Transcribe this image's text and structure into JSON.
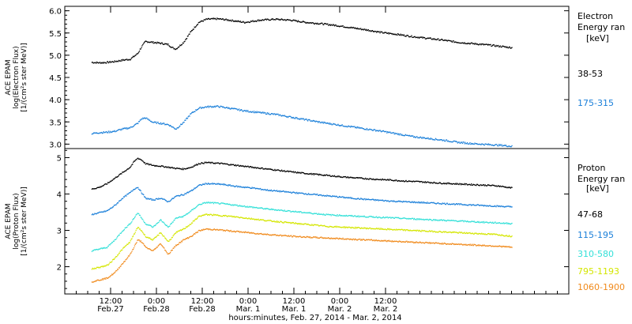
{
  "chart_data": [
    {
      "type": "scatter",
      "ylabel": [
        "ACE EPAM",
        "log(Electron Flux)",
        "[1/(cm²s ster MeV)]"
      ],
      "legend": {
        "title": [
          "Electron",
          "Energy ran",
          "[keV]"
        ]
      },
      "ylim": [
        2.9,
        6.1
      ],
      "yticks": [
        "6.0",
        "5.5",
        "5.0",
        "4.5",
        "4.0",
        "3.5",
        "3.0"
      ],
      "series": [
        {
          "name": "38-53",
          "color": "#000000",
          "x": [
            0,
            2,
            4,
            6,
            8,
            10,
            12,
            13,
            14,
            16,
            18,
            20,
            21,
            22,
            24,
            26,
            28,
            30,
            33,
            36,
            40,
            44,
            48,
            52,
            56,
            60,
            64,
            68,
            72,
            76,
            80,
            84,
            88,
            92,
            96,
            100,
            104,
            108,
            110
          ],
          "values": [
            4.85,
            4.84,
            4.85,
            4.87,
            4.9,
            4.92,
            5.05,
            5.2,
            5.32,
            5.3,
            5.28,
            5.25,
            5.18,
            5.15,
            5.3,
            5.55,
            5.75,
            5.82,
            5.83,
            5.8,
            5.75,
            5.8,
            5.82,
            5.8,
            5.75,
            5.72,
            5.68,
            5.63,
            5.58,
            5.52,
            5.48,
            5.43,
            5.39,
            5.35,
            5.3,
            5.27,
            5.24,
            5.2,
            5.18
          ]
        },
        {
          "name": "175-315",
          "color": "#1a7fd9",
          "x": [
            0,
            2,
            4,
            6,
            8,
            10,
            12,
            13,
            14,
            16,
            18,
            20,
            21,
            22,
            24,
            26,
            28,
            30,
            33,
            36,
            40,
            44,
            48,
            52,
            56,
            60,
            64,
            68,
            72,
            76,
            80,
            84,
            88,
            92,
            96,
            100,
            104,
            108,
            110
          ],
          "values": [
            3.25,
            3.27,
            3.28,
            3.3,
            3.35,
            3.38,
            3.48,
            3.58,
            3.6,
            3.5,
            3.48,
            3.45,
            3.4,
            3.35,
            3.5,
            3.7,
            3.82,
            3.85,
            3.86,
            3.82,
            3.76,
            3.72,
            3.68,
            3.62,
            3.56,
            3.5,
            3.45,
            3.4,
            3.35,
            3.3,
            3.24,
            3.18,
            3.14,
            3.1,
            3.05,
            3.02,
            3.0,
            2.98,
            2.96
          ]
        }
      ]
    },
    {
      "type": "scatter",
      "ylabel": [
        "ACE EPAM",
        "log(Proton Flux)",
        "[1/(cm²s ster MeV)]"
      ],
      "legend": {
        "title": [
          "Proton",
          "Energy ran",
          "[keV]"
        ]
      },
      "ylim": [
        1.25,
        5.25
      ],
      "yticks": [
        "5",
        "4",
        "3",
        "2"
      ],
      "series": [
        {
          "name": "47-68",
          "color": "#000000",
          "x": [
            0,
            2,
            4,
            6,
            8,
            10,
            11,
            12,
            13,
            14,
            16,
            18,
            20,
            22,
            24,
            26,
            28,
            30,
            34,
            38,
            42,
            46,
            50,
            54,
            58,
            62,
            66,
            70,
            74,
            78,
            82,
            86,
            90,
            94,
            98,
            102,
            106,
            110
          ],
          "values": [
            4.15,
            4.2,
            4.3,
            4.45,
            4.6,
            4.75,
            4.9,
            5.0,
            4.95,
            4.85,
            4.8,
            4.78,
            4.75,
            4.72,
            4.7,
            4.75,
            4.85,
            4.88,
            4.85,
            4.8,
            4.75,
            4.7,
            4.65,
            4.6,
            4.56,
            4.52,
            4.48,
            4.45,
            4.42,
            4.4,
            4.37,
            4.35,
            4.32,
            4.3,
            4.28,
            4.26,
            4.24,
            4.18
          ]
        },
        {
          "name": "115-195",
          "color": "#1a7fd9",
          "x": [
            0,
            2,
            4,
            6,
            8,
            10,
            11,
            12,
            13,
            14,
            16,
            18,
            20,
            22,
            24,
            26,
            28,
            30,
            34,
            38,
            42,
            46,
            50,
            54,
            58,
            62,
            66,
            70,
            74,
            78,
            82,
            86,
            90,
            94,
            98,
            102,
            106,
            110
          ],
          "values": [
            3.45,
            3.5,
            3.55,
            3.7,
            3.9,
            4.05,
            4.15,
            4.2,
            4.05,
            3.9,
            3.85,
            3.9,
            3.8,
            3.95,
            4.0,
            4.1,
            4.25,
            4.3,
            4.28,
            4.22,
            4.18,
            4.12,
            4.08,
            4.04,
            4.0,
            3.96,
            3.92,
            3.88,
            3.85,
            3.82,
            3.8,
            3.78,
            3.76,
            3.74,
            3.72,
            3.7,
            3.68,
            3.66
          ]
        },
        {
          "name": "310-580",
          "color": "#33e0d8",
          "x": [
            0,
            2,
            4,
            6,
            8,
            10,
            11,
            12,
            13,
            14,
            16,
            18,
            20,
            22,
            24,
            26,
            28,
            30,
            34,
            38,
            42,
            46,
            50,
            54,
            58,
            62,
            66,
            70,
            74,
            78,
            82,
            86,
            90,
            94,
            98,
            102,
            106,
            110
          ],
          "values": [
            2.45,
            2.5,
            2.55,
            2.75,
            3.0,
            3.2,
            3.35,
            3.5,
            3.35,
            3.2,
            3.1,
            3.3,
            3.1,
            3.35,
            3.4,
            3.55,
            3.72,
            3.78,
            3.75,
            3.7,
            3.65,
            3.6,
            3.56,
            3.52,
            3.48,
            3.44,
            3.42,
            3.4,
            3.38,
            3.36,
            3.34,
            3.32,
            3.3,
            3.28,
            3.26,
            3.24,
            3.22,
            3.2
          ]
        },
        {
          "name": "795-1193",
          "color": "#d4e600",
          "x": [
            0,
            2,
            4,
            6,
            8,
            10,
            11,
            12,
            13,
            14,
            16,
            18,
            20,
            22,
            24,
            26,
            28,
            30,
            34,
            38,
            42,
            46,
            50,
            54,
            58,
            62,
            66,
            70,
            74,
            78,
            82,
            86,
            90,
            94,
            98,
            102,
            106,
            110
          ],
          "values": [
            1.95,
            2.0,
            2.05,
            2.25,
            2.5,
            2.7,
            2.9,
            3.1,
            3.0,
            2.85,
            2.75,
            2.95,
            2.7,
            2.95,
            3.05,
            3.2,
            3.4,
            3.45,
            3.42,
            3.38,
            3.33,
            3.28,
            3.24,
            3.2,
            3.16,
            3.12,
            3.1,
            3.08,
            3.06,
            3.04,
            3.02,
            3.0,
            2.98,
            2.96,
            2.94,
            2.92,
            2.9,
            2.85
          ]
        },
        {
          "name": "1060-1900",
          "color": "#f08a1c",
          "x": [
            0,
            2,
            4,
            6,
            8,
            10,
            11,
            12,
            13,
            14,
            16,
            18,
            20,
            22,
            24,
            26,
            28,
            30,
            34,
            38,
            42,
            46,
            50,
            54,
            58,
            62,
            66,
            70,
            74,
            78,
            82,
            86,
            90,
            94,
            98,
            102,
            106,
            110
          ],
          "values": [
            1.6,
            1.65,
            1.7,
            1.85,
            2.1,
            2.35,
            2.55,
            2.75,
            2.7,
            2.55,
            2.45,
            2.65,
            2.35,
            2.6,
            2.75,
            2.85,
            3.0,
            3.05,
            3.02,
            2.98,
            2.94,
            2.9,
            2.87,
            2.84,
            2.82,
            2.8,
            2.78,
            2.76,
            2.74,
            2.72,
            2.7,
            2.68,
            2.66,
            2.64,
            2.62,
            2.6,
            2.58,
            2.55
          ]
        }
      ]
    }
  ],
  "x_axis": {
    "title": "hours:minutes, Feb. 27, 2014 - Mar.  2, 2014",
    "range_hours": [
      -7,
      125
    ],
    "ticks": [
      {
        "hour": 5,
        "time": "12:00",
        "date": "Feb.27"
      },
      {
        "hour": 17,
        "time": "0:00",
        "date": "Feb.28"
      },
      {
        "hour": 29,
        "time": "12:00",
        "date": "Feb.28"
      },
      {
        "hour": 41,
        "time": "0:00",
        "date": "Mar. 1"
      },
      {
        "hour": 53,
        "time": "12:00",
        "date": "Mar. 1"
      },
      {
        "hour": 65,
        "time": "0:00",
        "date": "Mar. 2"
      },
      {
        "hour": 77,
        "time": "12:00",
        "date": "Mar. 2"
      }
    ]
  }
}
